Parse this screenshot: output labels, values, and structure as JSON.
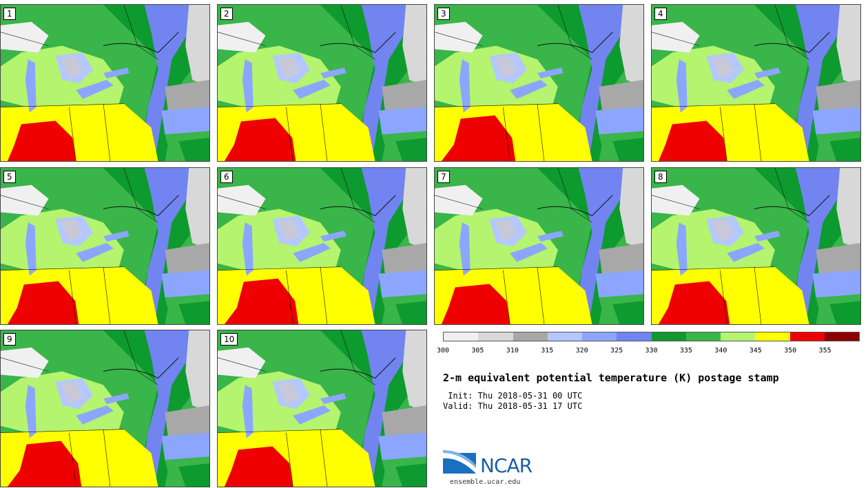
{
  "panels": [
    {
      "label": "1"
    },
    {
      "label": "2"
    },
    {
      "label": "3"
    },
    {
      "label": "4"
    },
    {
      "label": "5"
    },
    {
      "label": "6"
    },
    {
      "label": "7"
    },
    {
      "label": "8"
    },
    {
      "label": "9"
    },
    {
      "label": "10"
    }
  ],
  "colorbar": {
    "colors": [
      "#f0f0f0",
      "#d8d8d8",
      "#a8a8a8",
      "#b4c8ff",
      "#8ca6ff",
      "#7284f0",
      "#0d9a2e",
      "#39b54a",
      "#b4f46e",
      "#ffff00",
      "#ee0000",
      "#8b0000"
    ],
    "ticks": [
      "300",
      "305",
      "310",
      "315",
      "320",
      "325",
      "330",
      "335",
      "340",
      "345",
      "350",
      "355"
    ]
  },
  "title": "2-m equivalent potential temperature (K) postage stamp",
  "init": " Init: Thu 2018-05-31 00 UTC",
  "valid": "Valid: Thu 2018-05-31 17 UTC",
  "logo": {
    "text": "NCAR",
    "url": "ensemble.ucar.edu"
  }
}
